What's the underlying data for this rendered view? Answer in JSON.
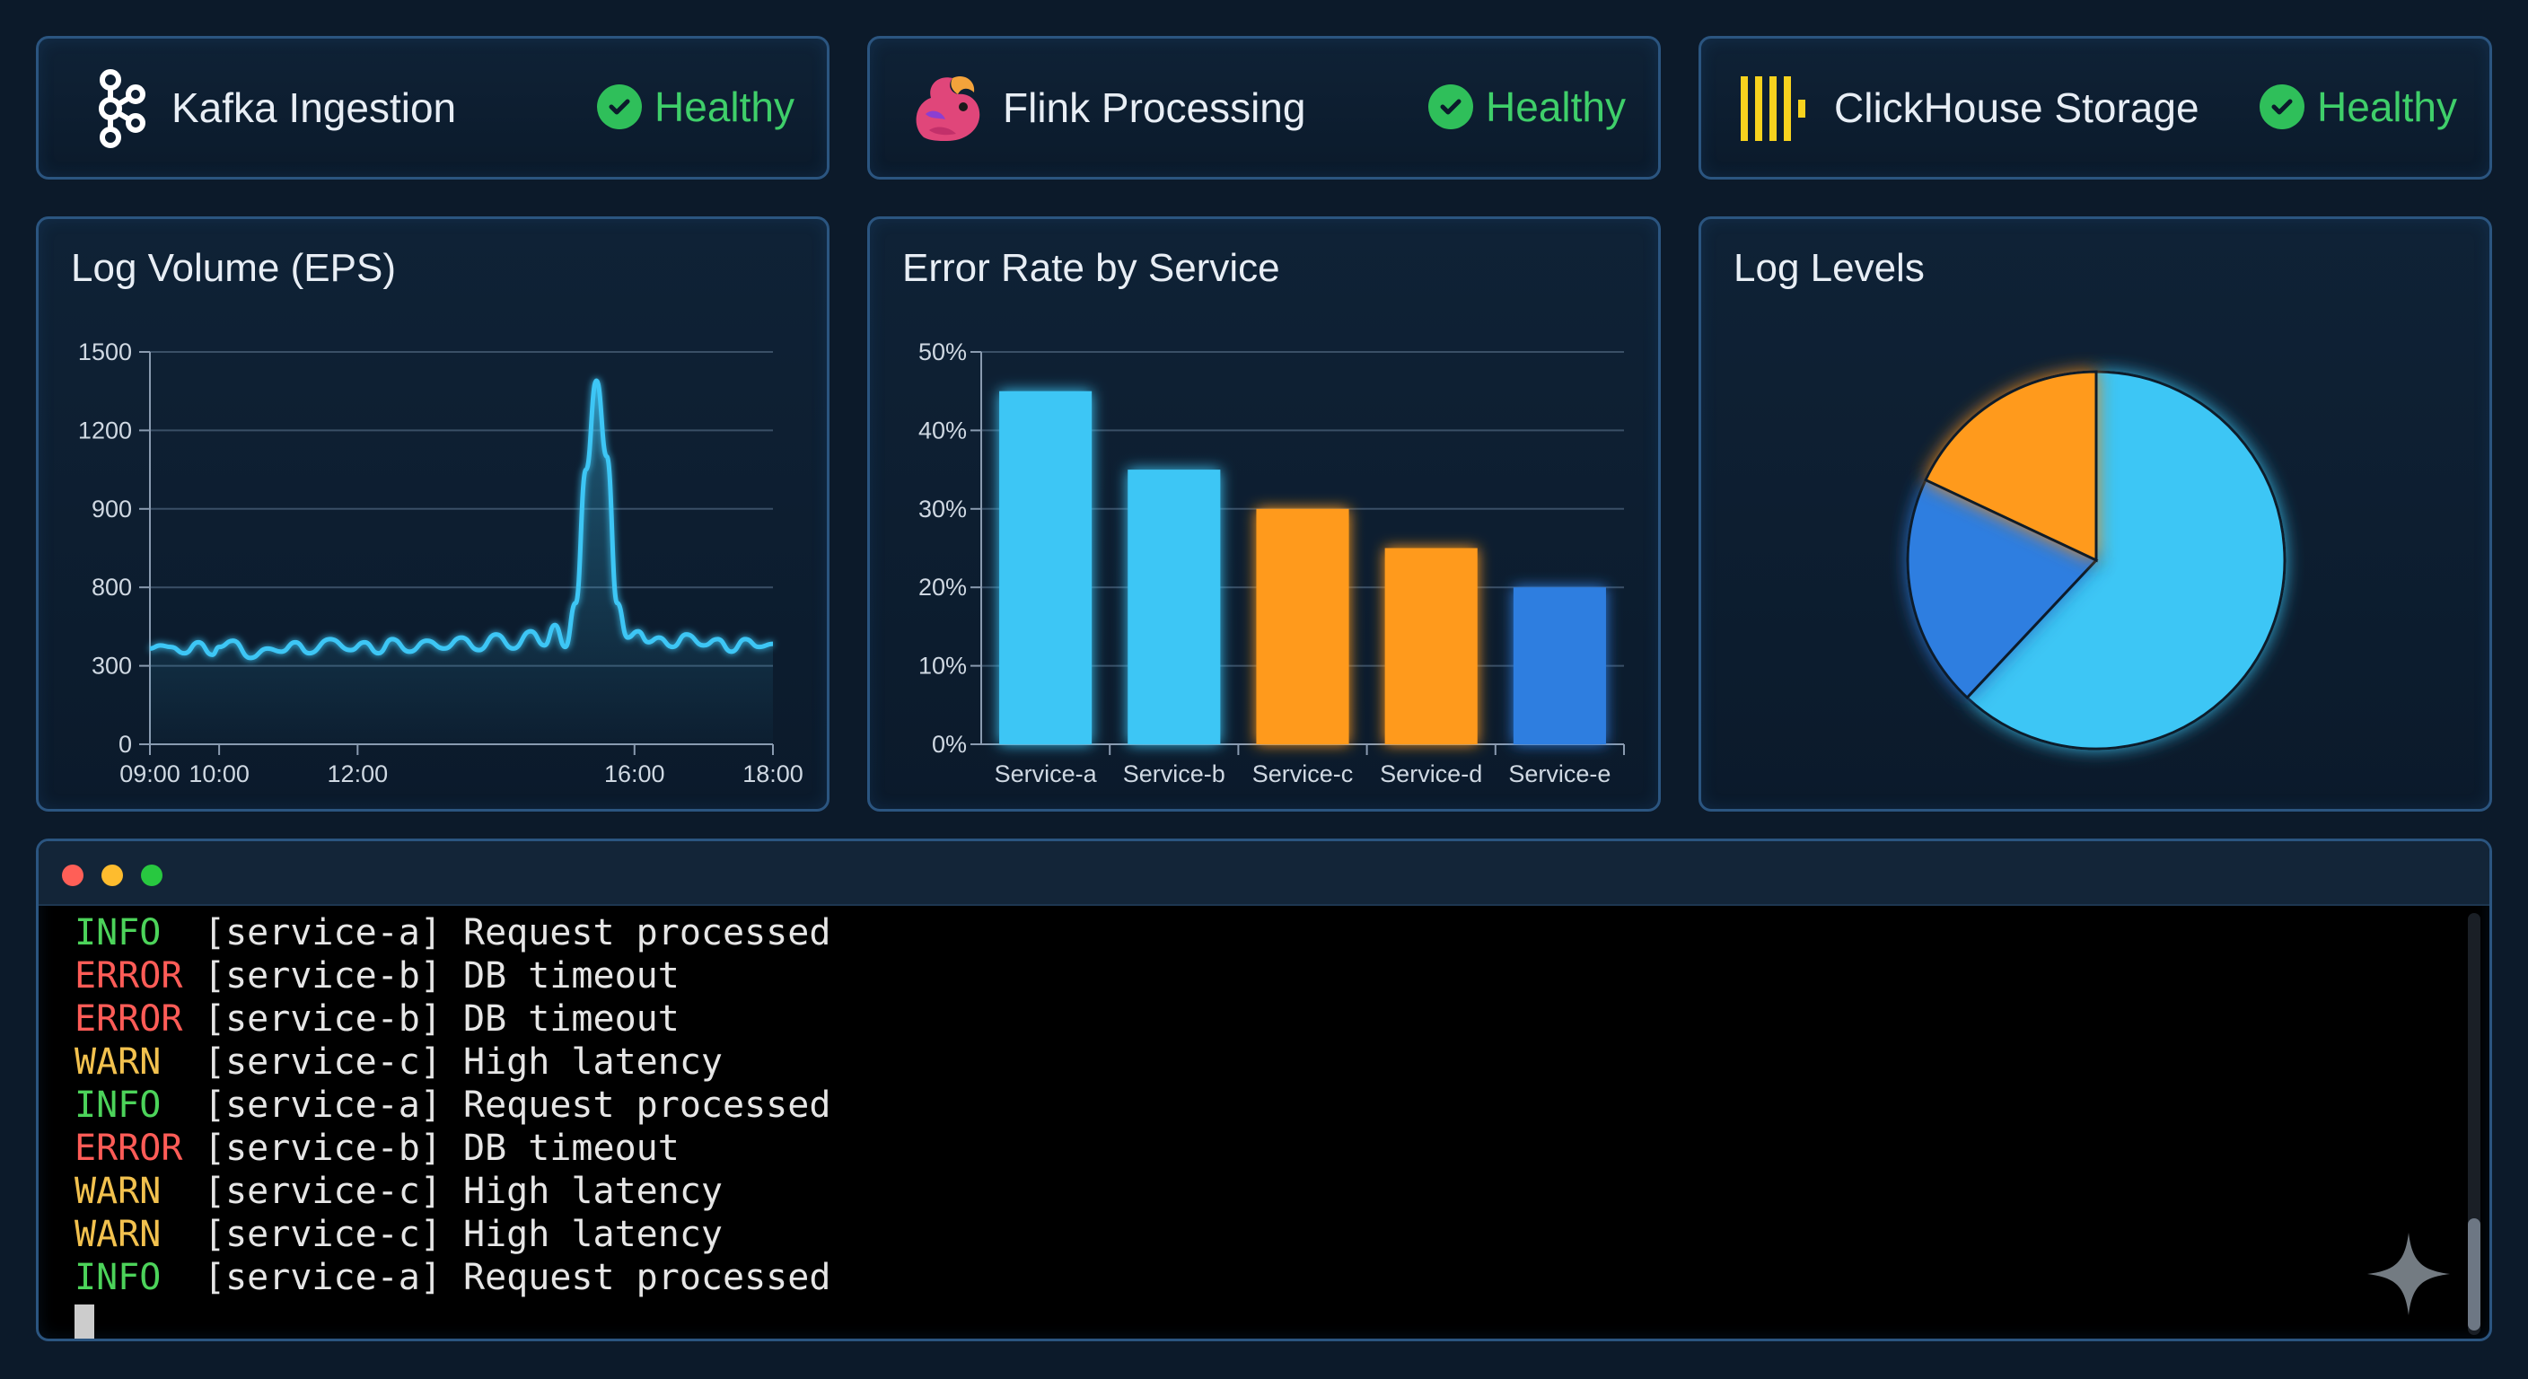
{
  "status_cards": [
    {
      "name": "Kafka Ingestion",
      "status": "Healthy",
      "icon": "kafka-logo-icon"
    },
    {
      "name": "Flink Processing",
      "status": "Healthy",
      "icon": "flink-squirrel-icon"
    },
    {
      "name": "ClickHouse Storage",
      "status": "Healthy",
      "icon": "clickhouse-bars-icon"
    }
  ],
  "colors": {
    "healthy": "#3fcf6a",
    "info": "#4cd35a",
    "error": "#ff5c57",
    "warn": "#f2c14e",
    "series_cyan": "#3ec6f5",
    "series_orange": "#ff9a1f",
    "series_blue": "#2f7ee0"
  },
  "chart_data": [
    {
      "type": "line",
      "title": "Log Volume (EPS)",
      "x_tick_labels": [
        "09:00",
        "10:00",
        "12:00",
        "16:00",
        "18:00"
      ],
      "y_tick_labels": [
        "0",
        "300",
        "800",
        "900",
        "1200",
        "1500"
      ],
      "ylim": [
        0,
        1500
      ],
      "series": [
        {
          "name": "EPS",
          "x_hours": [
            9.0,
            9.15,
            9.3,
            9.5,
            9.7,
            9.9,
            10.0,
            10.2,
            10.45,
            10.7,
            10.9,
            11.1,
            11.3,
            11.6,
            11.9,
            12.1,
            12.3,
            12.5,
            12.75,
            13.0,
            13.25,
            13.5,
            13.75,
            14.0,
            14.25,
            14.5,
            14.7,
            14.85,
            15.0,
            15.15,
            15.3,
            15.45,
            15.6,
            15.75,
            15.9,
            16.05,
            16.2,
            16.35,
            16.55,
            16.75,
            17.0,
            17.2,
            17.4,
            17.6,
            17.8,
            18.0
          ],
          "values": [
            410,
            430,
            420,
            380,
            450,
            370,
            420,
            460,
            350,
            410,
            390,
            450,
            380,
            470,
            400,
            450,
            380,
            470,
            390,
            460,
            410,
            480,
            400,
            500,
            410,
            520,
            430,
            560,
            420,
            700,
            1050,
            1390,
            1100,
            700,
            480,
            520,
            450,
            480,
            420,
            500,
            430,
            470,
            390,
            470,
            420,
            440
          ]
        }
      ]
    },
    {
      "type": "bar",
      "title": "Error Rate by Service",
      "categories": [
        "Service-a",
        "Service-b",
        "Service-c",
        "Service-d",
        "Service-e"
      ],
      "values": [
        45,
        35,
        30,
        25,
        20
      ],
      "bar_colors": [
        "#3ec6f5",
        "#3ec6f5",
        "#ff9a1f",
        "#ff9a1f",
        "#2f7ee0"
      ],
      "y_tick_labels": [
        "0%",
        "10%",
        "20%",
        "30%",
        "40%",
        "50%"
      ],
      "ylim": [
        0,
        50
      ]
    },
    {
      "type": "pie",
      "title": "Log Levels",
      "values": [
        62,
        20,
        18
      ],
      "slice_colors": [
        "#3ec6f5",
        "#2f7ee0",
        "#ff9a1f"
      ]
    }
  ],
  "terminal": {
    "lines": [
      {
        "level": "INFO",
        "service": "[service-a]",
        "message": "Request processed"
      },
      {
        "level": "ERROR",
        "service": "[service-b]",
        "message": "DB timeout"
      },
      {
        "level": "ERROR",
        "service": "[service-b]",
        "message": "DB timeout"
      },
      {
        "level": "WARN",
        "service": "[service-c]",
        "message": "High latency"
      },
      {
        "level": "INFO",
        "service": "[service-a]",
        "message": "Request processed"
      },
      {
        "level": "ERROR",
        "service": "[service-b]",
        "message": "DB timeout"
      },
      {
        "level": "WARN",
        "service": "[service-c]",
        "message": "High latency"
      },
      {
        "level": "WARN",
        "service": "[service-c]",
        "message": "High latency"
      },
      {
        "level": "INFO",
        "service": "[service-a]",
        "message": "Request processed"
      }
    ]
  }
}
